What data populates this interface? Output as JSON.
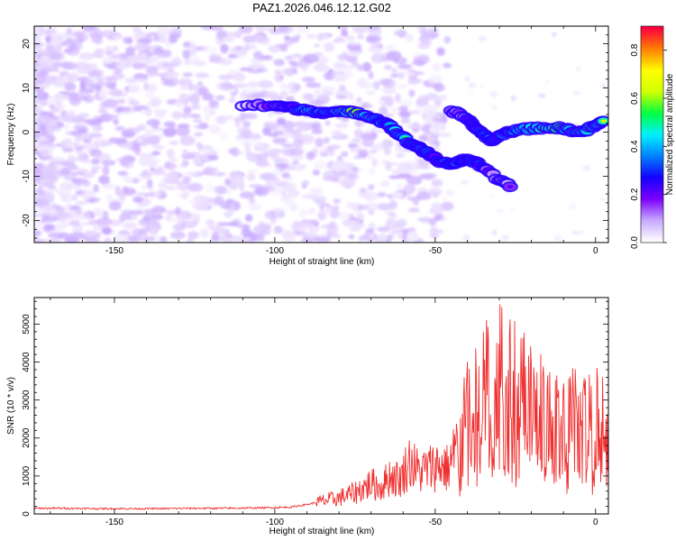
{
  "title": "PAZ1.2026.046.12.12.G02",
  "chart_data": [
    {
      "type": "heatmap",
      "name": "spectrogram",
      "xlabel": "Height of straight line (km)",
      "ylabel": "Frequency (Hz)",
      "xlim": [
        -175,
        4
      ],
      "ylim": [
        -25,
        24
      ],
      "xticks": [
        -150,
        -100,
        -50,
        0
      ],
      "yticks": [
        -20,
        -10,
        0,
        10,
        20
      ],
      "colorbar": {
        "label": "Normalized spectral amplitude",
        "range": [
          0,
          0.9
        ],
        "ticks": [
          "0.0",
          "0.2",
          "0.4",
          "0.6",
          "0.8"
        ],
        "colors": [
          "#ffffff",
          "#c8a8ff",
          "#7a00ff",
          "#1400ff",
          "#0080ff",
          "#00f0ff",
          "#00ff40",
          "#d0ff00",
          "#ffff00",
          "#ff8000",
          "#ff0040"
        ]
      },
      "ridge": {
        "description": "bright frequency-track ridge (x in km, y in Hz)",
        "main_track": [
          {
            "x": -110,
            "y": 6,
            "a": 0.12
          },
          {
            "x": -100,
            "y": 6,
            "a": 0.2
          },
          {
            "x": -95,
            "y": 5.5,
            "a": 0.28
          },
          {
            "x": -90,
            "y": 5,
            "a": 0.55
          },
          {
            "x": -85,
            "y": 4.5,
            "a": 0.42
          },
          {
            "x": -80,
            "y": 4.5,
            "a": 0.52
          },
          {
            "x": -75,
            "y": 4.5,
            "a": 0.72
          },
          {
            "x": -70,
            "y": 3.5,
            "a": 0.48
          },
          {
            "x": -65,
            "y": 2,
            "a": 0.4
          },
          {
            "x": -62,
            "y": 0,
            "a": 0.55
          },
          {
            "x": -58,
            "y": -2.5,
            "a": 0.45
          },
          {
            "x": -55,
            "y": -3.5,
            "a": 0.42
          },
          {
            "x": -52,
            "y": -5,
            "a": 0.35
          },
          {
            "x": -48,
            "y": -7,
            "a": 0.3
          },
          {
            "x": -44,
            "y": -7,
            "a": 0.45
          },
          {
            "x": -40,
            "y": -6,
            "a": 0.4
          },
          {
            "x": -36,
            "y": -7.5,
            "a": 0.3
          },
          {
            "x": -30,
            "y": -11,
            "a": 0.18
          },
          {
            "x": -26,
            "y": -12.5,
            "a": 0.12
          }
        ],
        "upper_track": [
          {
            "x": -45,
            "y": 5,
            "a": 0.14
          },
          {
            "x": -40,
            "y": 3,
            "a": 0.2
          },
          {
            "x": -36,
            "y": 0,
            "a": 0.3
          },
          {
            "x": -32,
            "y": -2,
            "a": 0.38
          },
          {
            "x": -28,
            "y": 0,
            "a": 0.45
          },
          {
            "x": -24,
            "y": 0.5,
            "a": 0.5
          },
          {
            "x": -18,
            "y": 1,
            "a": 0.55
          },
          {
            "x": -12,
            "y": 1,
            "a": 0.7
          },
          {
            "x": -8,
            "y": 0.5,
            "a": 0.6
          },
          {
            "x": -4,
            "y": 0,
            "a": 0.65
          },
          {
            "x": 0,
            "y": 1.5,
            "a": 0.55
          },
          {
            "x": 3,
            "y": 2.5,
            "a": 0.65
          }
        ]
      }
    },
    {
      "type": "line",
      "name": "snr",
      "xlabel": "Height of straight line (km)",
      "ylabel": "SNR (10 * v/v)",
      "xlim": [
        -175,
        4
      ],
      "ylim": [
        0,
        5700
      ],
      "xticks": [
        -150,
        -100,
        -50,
        0
      ],
      "yticks": [
        0,
        1000,
        2000,
        3000,
        4000,
        5000
      ],
      "line_color": "#f03030",
      "series": [
        {
          "name": "SNR",
          "x": [
            -175,
            -165,
            -155,
            -145,
            -135,
            -125,
            -115,
            -105,
            -95,
            -90,
            -85,
            -80,
            -75,
            -70,
            -67,
            -64,
            -61,
            -58,
            -55,
            -52,
            -49,
            -46,
            -43,
            -40,
            -37,
            -34,
            -31,
            -28,
            -25,
            -22,
            -19,
            -16,
            -13,
            -10,
            -7,
            -4,
            -1,
            2,
            4
          ],
          "y": [
            150,
            150,
            140,
            140,
            140,
            150,
            150,
            160,
            180,
            250,
            340,
            420,
            560,
            800,
            700,
            1000,
            900,
            1400,
            1100,
            1200,
            1300,
            1200,
            1800,
            2600,
            2900,
            3400,
            3600,
            3800,
            3500,
            3100,
            3000,
            2700,
            2500,
            2300,
            2500,
            2300,
            2400,
            2600,
            1900
          ]
        }
      ],
      "peaks_x": [
        -105,
        -70,
        -60,
        -55,
        -46,
        -42,
        -38,
        -37,
        -35,
        -32,
        -29,
        -26,
        -25,
        -22,
        -19,
        -14,
        -10,
        -6,
        -3,
        0,
        2
      ]
    }
  ]
}
